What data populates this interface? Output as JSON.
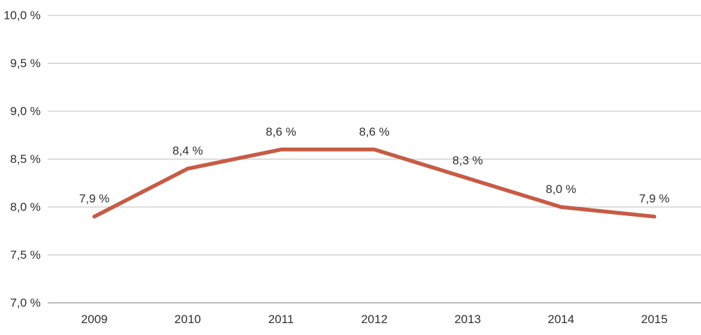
{
  "chart_data": {
    "type": "line",
    "title": "",
    "xlabel": "",
    "ylabel": "",
    "categories": [
      "2009",
      "2010",
      "2011",
      "2012",
      "2013",
      "2014",
      "2015"
    ],
    "series": [
      {
        "name": "share-percent",
        "values": [
          7.9,
          8.4,
          8.6,
          8.6,
          8.3,
          8.0,
          7.9
        ],
        "point_labels": [
          "7,9 %",
          "8,4 %",
          "8,6 %",
          "8,6 %",
          "8,3 %",
          "8,0 %",
          "7,9 %"
        ],
        "color": "#C75B45"
      }
    ],
    "y_axis": {
      "min": 7.0,
      "max": 10.0,
      "tick_values": [
        10.0,
        9.5,
        9.0,
        8.5,
        8.0,
        7.5,
        7.0
      ],
      "tick_labels": [
        "10,0 %",
        "9,5 %",
        "9,0 %",
        "8,5 %",
        "8,0 %",
        "7,5 %",
        "7,0 %"
      ]
    },
    "grid": "horizontal",
    "legend": "none",
    "colors": {
      "gridline": "#C9C9C9",
      "axis_line": "#A6A6A6",
      "text": "#303030",
      "background": "#FFFFFF"
    }
  }
}
